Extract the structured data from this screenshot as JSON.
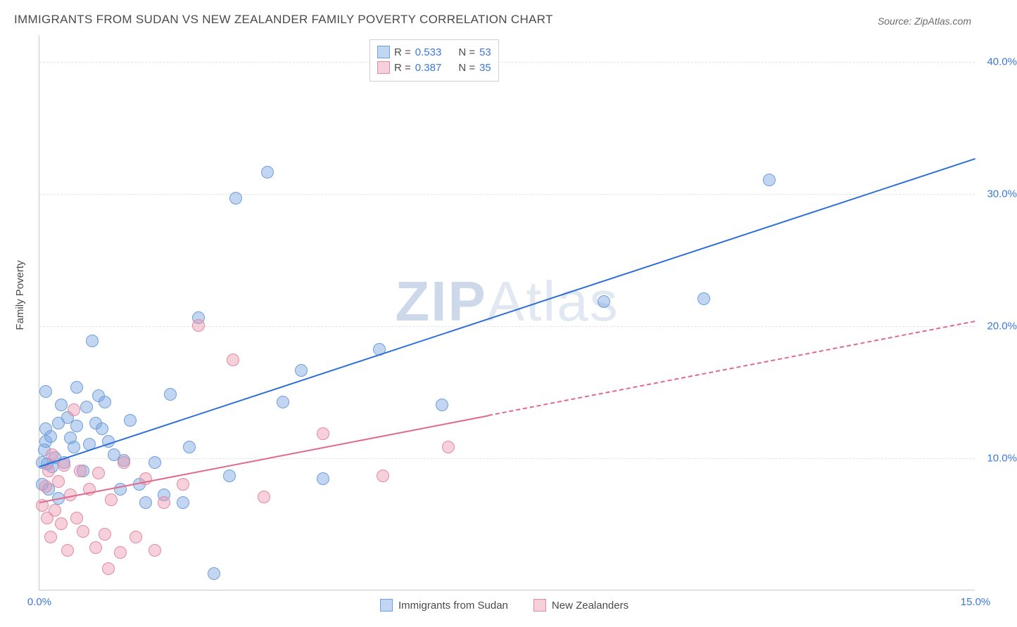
{
  "title": "IMMIGRANTS FROM SUDAN VS NEW ZEALANDER FAMILY POVERTY CORRELATION CHART",
  "source": "Source: ZipAtlas.com",
  "ylabel": "Family Poverty",
  "watermark": {
    "bold": "ZIP",
    "light": "Atlas"
  },
  "chart": {
    "type": "scatter+trend",
    "xlim": [
      0,
      15
    ],
    "ylim": [
      0,
      42
    ],
    "xticks": [
      {
        "v": 0,
        "label": "0.0%"
      },
      {
        "v": 15,
        "label": "15.0%"
      }
    ],
    "yticks": [
      {
        "v": 10,
        "label": "10.0%"
      },
      {
        "v": 20,
        "label": "20.0%"
      },
      {
        "v": 30,
        "label": "30.0%"
      },
      {
        "v": 40,
        "label": "40.0%"
      }
    ],
    "grid_color": "#e3e3e3",
    "axis_color": "#c9c9c9",
    "tick_color": "#3b78d8",
    "background_color": "#ffffff",
    "dot_radius": 9,
    "series": [
      {
        "name": "Immigrants from Sudan",
        "fill": "rgba(120,165,225,0.45)",
        "stroke": "#6f9fdc",
        "trend_color": "#2f6fd8",
        "trend_width": 2.2,
        "r": "0.533",
        "n": "53",
        "trend": {
          "x1": 0,
          "y1": 9.4,
          "x2": 15,
          "y2": 32.7,
          "solid_to_x": 15
        },
        "points": [
          [
            0.05,
            8.0
          ],
          [
            0.05,
            9.6
          ],
          [
            0.08,
            10.6
          ],
          [
            0.1,
            11.2
          ],
          [
            0.1,
            12.2
          ],
          [
            0.1,
            15.0
          ],
          [
            0.12,
            9.5
          ],
          [
            0.15,
            7.6
          ],
          [
            0.18,
            11.6
          ],
          [
            0.2,
            9.3
          ],
          [
            0.25,
            10.0
          ],
          [
            0.3,
            12.6
          ],
          [
            0.3,
            6.9
          ],
          [
            0.35,
            14.0
          ],
          [
            0.4,
            9.6
          ],
          [
            0.45,
            13.0
          ],
          [
            0.5,
            11.5
          ],
          [
            0.55,
            10.8
          ],
          [
            0.6,
            12.4
          ],
          [
            0.6,
            15.3
          ],
          [
            0.7,
            9.0
          ],
          [
            0.75,
            13.8
          ],
          [
            0.8,
            11.0
          ],
          [
            0.85,
            18.8
          ],
          [
            0.9,
            12.6
          ],
          [
            0.95,
            14.7
          ],
          [
            1.0,
            12.2
          ],
          [
            1.05,
            14.2
          ],
          [
            1.1,
            11.2
          ],
          [
            1.2,
            10.2
          ],
          [
            1.3,
            7.6
          ],
          [
            1.35,
            9.8
          ],
          [
            1.45,
            12.8
          ],
          [
            1.6,
            8.0
          ],
          [
            1.7,
            6.6
          ],
          [
            1.85,
            9.6
          ],
          [
            2.0,
            7.2
          ],
          [
            2.1,
            14.8
          ],
          [
            2.3,
            6.6
          ],
          [
            2.4,
            10.8
          ],
          [
            2.55,
            20.6
          ],
          [
            2.8,
            1.2
          ],
          [
            3.05,
            8.6
          ],
          [
            3.15,
            29.6
          ],
          [
            3.65,
            31.6
          ],
          [
            3.9,
            14.2
          ],
          [
            4.2,
            16.6
          ],
          [
            4.55,
            8.4
          ],
          [
            5.45,
            18.2
          ],
          [
            6.45,
            14.0
          ],
          [
            9.05,
            21.8
          ],
          [
            10.65,
            22.0
          ],
          [
            11.7,
            31.0
          ]
        ]
      },
      {
        "name": "New Zealanders",
        "fill": "rgba(235,150,175,0.45)",
        "stroke": "#e38aa3",
        "trend_color": "#e06a8b",
        "trend_width": 2.2,
        "r": "0.387",
        "n": "35",
        "trend": {
          "x1": 0,
          "y1": 6.7,
          "x2": 15,
          "y2": 20.4,
          "solid_to_x": 7.2
        },
        "points": [
          [
            0.05,
            6.4
          ],
          [
            0.1,
            7.8
          ],
          [
            0.12,
            5.4
          ],
          [
            0.15,
            9.0
          ],
          [
            0.18,
            4.0
          ],
          [
            0.2,
            10.2
          ],
          [
            0.25,
            6.0
          ],
          [
            0.3,
            8.2
          ],
          [
            0.35,
            5.0
          ],
          [
            0.4,
            9.4
          ],
          [
            0.45,
            3.0
          ],
          [
            0.5,
            7.2
          ],
          [
            0.55,
            13.6
          ],
          [
            0.6,
            5.4
          ],
          [
            0.65,
            9.0
          ],
          [
            0.7,
            4.4
          ],
          [
            0.8,
            7.6
          ],
          [
            0.9,
            3.2
          ],
          [
            0.95,
            8.8
          ],
          [
            1.05,
            4.2
          ],
          [
            1.15,
            6.8
          ],
          [
            1.3,
            2.8
          ],
          [
            1.35,
            9.6
          ],
          [
            1.55,
            4.0
          ],
          [
            1.7,
            8.4
          ],
          [
            1.85,
            3.0
          ],
          [
            2.0,
            6.6
          ],
          [
            2.3,
            8.0
          ],
          [
            2.55,
            20.0
          ],
          [
            3.1,
            17.4
          ],
          [
            3.6,
            7.0
          ],
          [
            4.55,
            11.8
          ],
          [
            5.5,
            8.6
          ],
          [
            6.55,
            10.8
          ],
          [
            1.1,
            1.6
          ]
        ]
      }
    ]
  },
  "legend_top": {
    "rows": [
      {
        "swatch": "blue",
        "r_label": "R =",
        "r_val": "0.533",
        "n_label": "N =",
        "n_val": "53"
      },
      {
        "swatch": "pink",
        "r_label": "R =",
        "r_val": "0.387",
        "n_label": "N =",
        "n_val": "35"
      }
    ]
  },
  "legend_bottom": {
    "items": [
      {
        "swatch": "blue",
        "label": "Immigrants from Sudan"
      },
      {
        "swatch": "pink",
        "label": "New Zealanders"
      }
    ]
  },
  "swatches": {
    "blue": {
      "fill": "rgba(120,165,225,0.45)",
      "stroke": "#6f9fdc"
    },
    "pink": {
      "fill": "rgba(235,150,175,0.45)",
      "stroke": "#e38aa3"
    }
  }
}
